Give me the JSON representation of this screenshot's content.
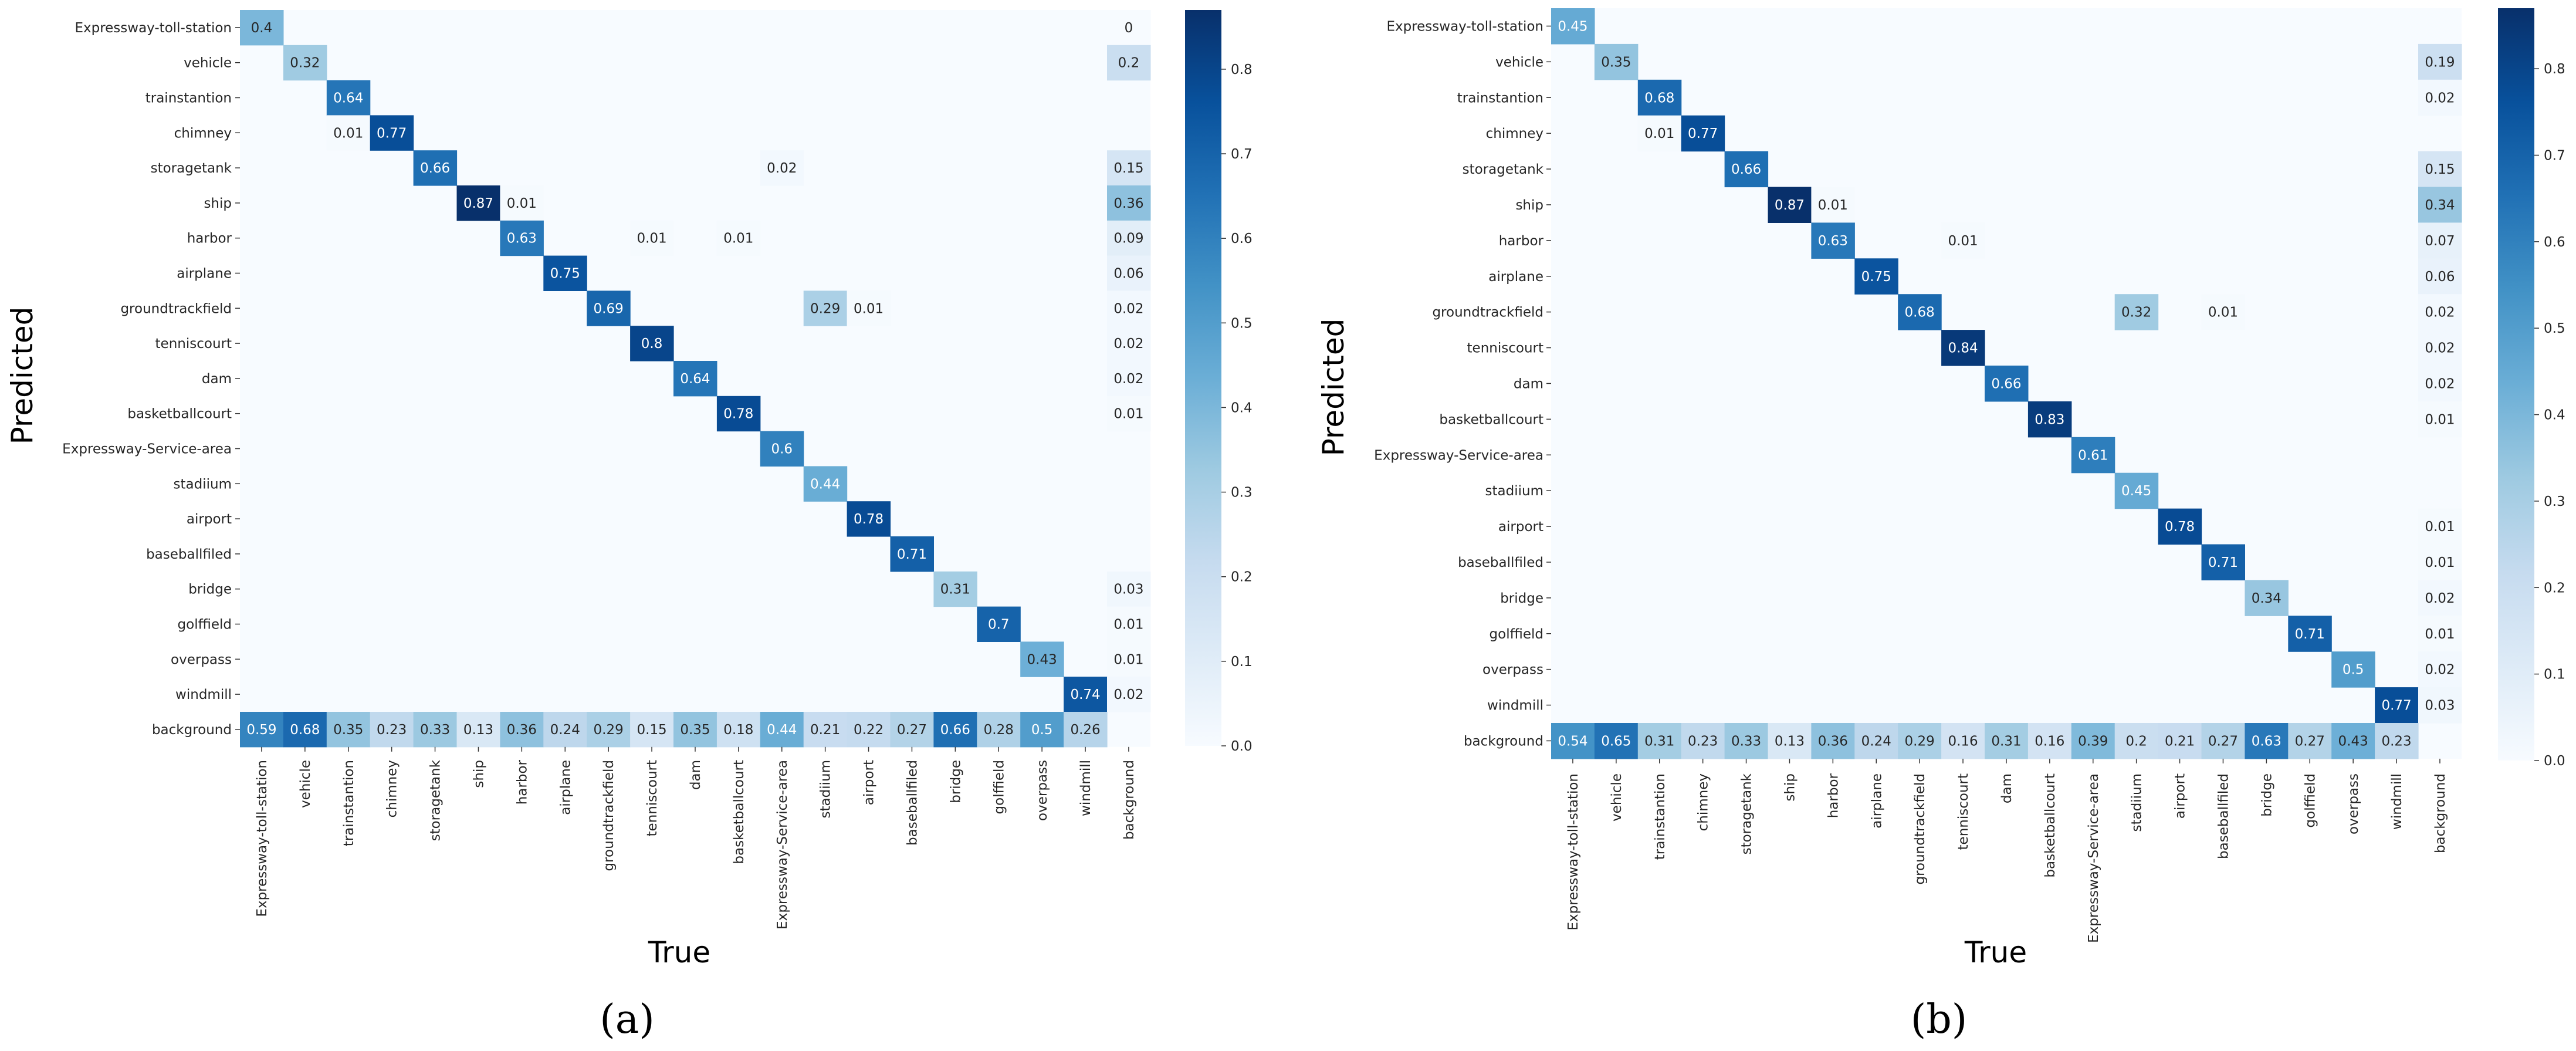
{
  "chart_data": [
    {
      "type": "heatmap",
      "title": "",
      "caption": "(a)",
      "xlabel": "True",
      "ylabel": "Predicted",
      "categories": [
        "Expressway-toll-station",
        "vehicle",
        "trainstantion",
        "chimney",
        "storagetank",
        "ship",
        "harbor",
        "airplane",
        "groundtrackfield",
        "tenniscourt",
        "dam",
        "basketballcourt",
        "Expressway-Service-area",
        "stadiium",
        "airport",
        "baseballfiled",
        "bridge",
        "golffield",
        "overpass",
        "windmill",
        "background"
      ],
      "cells": [
        [
          0,
          0,
          0.4
        ],
        [
          0,
          20,
          0
        ],
        [
          1,
          1,
          0.32
        ],
        [
          1,
          20,
          0.2
        ],
        [
          2,
          2,
          0.64
        ],
        [
          3,
          2,
          0.01
        ],
        [
          3,
          3,
          0.77
        ],
        [
          4,
          4,
          0.66
        ],
        [
          4,
          12,
          0.02
        ],
        [
          4,
          20,
          0.15
        ],
        [
          5,
          5,
          0.87
        ],
        [
          5,
          6,
          0.01
        ],
        [
          5,
          20,
          0.36
        ],
        [
          6,
          6,
          0.63
        ],
        [
          6,
          9,
          0.01
        ],
        [
          6,
          11,
          0.01
        ],
        [
          6,
          20,
          0.09
        ],
        [
          7,
          7,
          0.75
        ],
        [
          7,
          20,
          0.06
        ],
        [
          8,
          8,
          0.69
        ],
        [
          8,
          13,
          0.29
        ],
        [
          8,
          14,
          0.01
        ],
        [
          8,
          20,
          0.02
        ],
        [
          9,
          9,
          0.8
        ],
        [
          9,
          20,
          0.02
        ],
        [
          10,
          10,
          0.64
        ],
        [
          10,
          20,
          0.02
        ],
        [
          11,
          11,
          0.78
        ],
        [
          11,
          20,
          0.01
        ],
        [
          12,
          12,
          0.6
        ],
        [
          13,
          13,
          0.44
        ],
        [
          14,
          14,
          0.78
        ],
        [
          15,
          15,
          0.71
        ],
        [
          16,
          16,
          0.31
        ],
        [
          16,
          20,
          0.03
        ],
        [
          17,
          17,
          0.7
        ],
        [
          17,
          20,
          0.01
        ],
        [
          18,
          18,
          0.43
        ],
        [
          18,
          20,
          0.01
        ],
        [
          19,
          19,
          0.74
        ],
        [
          19,
          20,
          0.02
        ],
        [
          20,
          0,
          0.59
        ],
        [
          20,
          1,
          0.68
        ],
        [
          20,
          2,
          0.35
        ],
        [
          20,
          3,
          0.23
        ],
        [
          20,
          4,
          0.33
        ],
        [
          20,
          5,
          0.13
        ],
        [
          20,
          6,
          0.36
        ],
        [
          20,
          7,
          0.24
        ],
        [
          20,
          8,
          0.29
        ],
        [
          20,
          9,
          0.15
        ],
        [
          20,
          10,
          0.35
        ],
        [
          20,
          11,
          0.18
        ],
        [
          20,
          12,
          0.44
        ],
        [
          20,
          13,
          0.21
        ],
        [
          20,
          14,
          0.22
        ],
        [
          20,
          15,
          0.27
        ],
        [
          20,
          16,
          0.66
        ],
        [
          20,
          17,
          0.28
        ],
        [
          20,
          18,
          0.5
        ],
        [
          20,
          19,
          0.26
        ]
      ],
      "colorbar": {
        "range": [
          0,
          0.87
        ],
        "ticks": [
          0.0,
          0.1,
          0.2,
          0.3,
          0.4,
          0.5,
          0.6,
          0.7,
          0.8
        ]
      }
    },
    {
      "type": "heatmap",
      "title": "",
      "caption": "(b)",
      "xlabel": "True",
      "ylabel": "Predicted",
      "categories": [
        "Expressway-toll-station",
        "vehicle",
        "trainstantion",
        "chimney",
        "storagetank",
        "ship",
        "harbor",
        "airplane",
        "groundtrackfield",
        "tenniscourt",
        "dam",
        "basketballcourt",
        "Expressway-Service-area",
        "stadiium",
        "airport",
        "baseballfiled",
        "bridge",
        "golffield",
        "overpass",
        "windmill",
        "background"
      ],
      "cells": [
        [
          0,
          0,
          0.45
        ],
        [
          1,
          1,
          0.35
        ],
        [
          1,
          20,
          0.19
        ],
        [
          2,
          2,
          0.68
        ],
        [
          2,
          20,
          0.02
        ],
        [
          3,
          2,
          0.01
        ],
        [
          3,
          3,
          0.77
        ],
        [
          4,
          4,
          0.66
        ],
        [
          4,
          20,
          0.15
        ],
        [
          5,
          5,
          0.87
        ],
        [
          5,
          6,
          0.01
        ],
        [
          5,
          20,
          0.34
        ],
        [
          6,
          6,
          0.63
        ],
        [
          6,
          9,
          0.01
        ],
        [
          6,
          20,
          0.07
        ],
        [
          7,
          7,
          0.75
        ],
        [
          7,
          20,
          0.06
        ],
        [
          8,
          8,
          0.68
        ],
        [
          8,
          13,
          0.32
        ],
        [
          8,
          15,
          0.01
        ],
        [
          8,
          20,
          0.02
        ],
        [
          9,
          9,
          0.84
        ],
        [
          9,
          20,
          0.02
        ],
        [
          10,
          10,
          0.66
        ],
        [
          10,
          20,
          0.02
        ],
        [
          11,
          11,
          0.83
        ],
        [
          11,
          20,
          0.01
        ],
        [
          12,
          12,
          0.61
        ],
        [
          13,
          13,
          0.45
        ],
        [
          14,
          14,
          0.78
        ],
        [
          14,
          20,
          0.01
        ],
        [
          15,
          15,
          0.71
        ],
        [
          15,
          20,
          0.01
        ],
        [
          16,
          16,
          0.34
        ],
        [
          16,
          20,
          0.02
        ],
        [
          17,
          17,
          0.71
        ],
        [
          17,
          20,
          0.01
        ],
        [
          18,
          18,
          0.5
        ],
        [
          18,
          20,
          0.02
        ],
        [
          19,
          19,
          0.77
        ],
        [
          19,
          20,
          0.03
        ],
        [
          20,
          0,
          0.54
        ],
        [
          20,
          1,
          0.65
        ],
        [
          20,
          2,
          0.31
        ],
        [
          20,
          3,
          0.23
        ],
        [
          20,
          4,
          0.33
        ],
        [
          20,
          5,
          0.13
        ],
        [
          20,
          6,
          0.36
        ],
        [
          20,
          7,
          0.24
        ],
        [
          20,
          8,
          0.29
        ],
        [
          20,
          9,
          0.16
        ],
        [
          20,
          10,
          0.31
        ],
        [
          20,
          11,
          0.16
        ],
        [
          20,
          12,
          0.39
        ],
        [
          20,
          13,
          0.2
        ],
        [
          20,
          14,
          0.21
        ],
        [
          20,
          15,
          0.27
        ],
        [
          20,
          16,
          0.63
        ],
        [
          20,
          17,
          0.27
        ],
        [
          20,
          18,
          0.43
        ],
        [
          20,
          19,
          0.23
        ]
      ],
      "colorbar": {
        "range": [
          0,
          0.87
        ],
        "ticks": [
          0.0,
          0.1,
          0.2,
          0.3,
          0.4,
          0.5,
          0.6,
          0.7,
          0.8
        ]
      }
    }
  ]
}
